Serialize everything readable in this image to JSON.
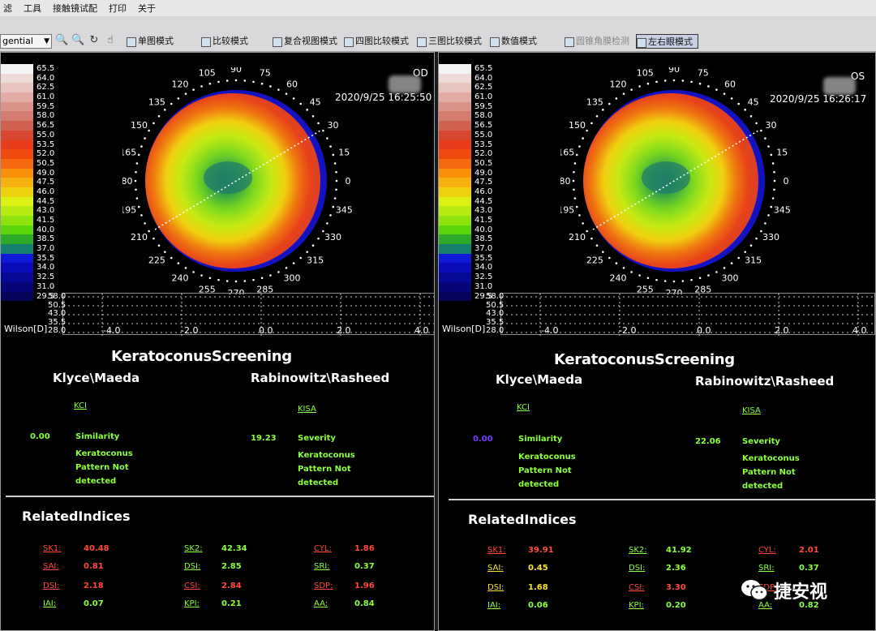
{
  "menu": [
    "滤",
    "工具",
    "接触镜试配",
    "打印",
    "关于"
  ],
  "toolbar": {
    "select_value": "gential",
    "buttons": [
      {
        "label": "单图模式",
        "state": "normal"
      },
      {
        "label": "比较模式",
        "state": "normal"
      },
      {
        "label": "复合视图模式",
        "state": "normal"
      },
      {
        "label": "四图比较模式",
        "state": "normal"
      },
      {
        "label": "三图比较模式",
        "state": "normal"
      },
      {
        "label": "数值模式",
        "state": "normal"
      },
      {
        "label": "圆锥角膜检测",
        "state": "disabled"
      },
      {
        "label": "左右眼模式",
        "state": "active"
      }
    ]
  },
  "scale": {
    "values": [
      "65.5",
      "64.0",
      "62.5",
      "61.0",
      "59.5",
      "58.0",
      "56.5",
      "55.0",
      "53.5",
      "52.0",
      "50.5",
      "49.0",
      "47.5",
      "46.0",
      "44.5",
      "43.0",
      "41.5",
      "40.0",
      "38.5",
      "37.0",
      "35.5",
      "34.0",
      "32.5",
      "31.0",
      "29.5"
    ],
    "colors": [
      "#f4f4f4",
      "#eedad6",
      "#e7c4be",
      "#e0aca4",
      "#da948a",
      "#d57c70",
      "#d06050",
      "#d94630",
      "#e83c1c",
      "#f04a10",
      "#f46a0e",
      "#f8900c",
      "#f6b010",
      "#eed20e",
      "#dff014",
      "#b6ea10",
      "#8ee20e",
      "#5cd40c",
      "#2eaa2a",
      "#16806e",
      "#1018d8",
      "#0a0cb8",
      "#080896",
      "#060678",
      "#040458"
    ]
  },
  "axis_labels": [
    "0",
    "15",
    "30",
    "45",
    "60",
    "75",
    "90",
    "105",
    "120",
    "135",
    "150",
    "165",
    "180",
    "195",
    "210",
    "225",
    "240",
    "255",
    "270",
    "285",
    "300",
    "315",
    "330",
    "345"
  ],
  "wilson": {
    "label": "Wilson[D]",
    "y": [
      "58.0",
      "50.5",
      "43.0",
      "35.5",
      "28.0"
    ],
    "x": [
      "-4.0",
      "-2.0",
      "0.0",
      "2.0",
      "4.0"
    ]
  },
  "screening": {
    "title": "KeratoconusScreening",
    "left_title": "Klyce\\Maeda",
    "right_title": "Rabinowitz\\Rasheed",
    "kci_link": "KCI",
    "kisa_link": "KISA",
    "similarity_label": "Similarity",
    "severity_label": "Severity",
    "result_lines": [
      "Keratoconus",
      "Pattern Not",
      "detected"
    ]
  },
  "related": {
    "title": "RelatedIndices",
    "labels": [
      "SK1:",
      "SAI:",
      "DSI:",
      "IAI:",
      "SK2:",
      "DSI:",
      "CSI:",
      "KPI:",
      "CYL:",
      "SRI:",
      "SDP:",
      "AA:"
    ]
  },
  "od": {
    "eye": "OD",
    "date": "2020/9/25",
    "time": "16:25:50",
    "kci_value": "0.00",
    "kisa_value": "19.23",
    "indices": [
      "40.48",
      "0.81",
      "2.18",
      "0.07",
      "42.34",
      "2.85",
      "2.84",
      "0.21",
      "1.86",
      "0.37",
      "1.96",
      "0.84"
    ],
    "label_colors": [
      "#ff4a3a",
      "#ff4a3a",
      "#ff4a3a",
      "#8bff3a",
      "#8bff3a",
      "#8bff3a",
      "#ff4a3a",
      "#8bff3a",
      "#ff4a3a",
      "#8bff3a",
      "#ff4a3a",
      "#8bff3a"
    ],
    "value_colors": [
      "#ff4a3a",
      "#ff4a3a",
      "#ff4a3a",
      "#8bff3a",
      "#8bff3a",
      "#8bff3a",
      "#ff4a3a",
      "#8bff3a",
      "#ff4a3a",
      "#8bff3a",
      "#ff4a3a",
      "#8bff3a"
    ]
  },
  "os": {
    "eye": "OS",
    "date": "2020/9/25",
    "time": "16:26:17",
    "kci_value": "0.00",
    "kisa_value": "22.06",
    "indices": [
      "39.91",
      "0.45",
      "1.68",
      "0.06",
      "41.92",
      "2.36",
      "3.30",
      "0.20",
      "2.01",
      "0.37",
      "",
      "0.82"
    ],
    "label_colors": [
      "#ff4a3a",
      "#f5e431",
      "#f5e431",
      "#8bff3a",
      "#8bff3a",
      "#8bff3a",
      "#ff4a3a",
      "#8bff3a",
      "#ff4a3a",
      "#8bff3a",
      "#ff4a3a",
      "#8bff3a"
    ],
    "value_colors": [
      "#ff4a3a",
      "#f5e431",
      "#f5e431",
      "#8bff3a",
      "#8bff3a",
      "#8bff3a",
      "#ff4a3a",
      "#8bff3a",
      "#ff4a3a",
      "#8bff3a",
      "#ff4a3a",
      "#8bff3a"
    ]
  },
  "watermark": {
    "text": "捷安视",
    "icon": "wechat-icon"
  }
}
